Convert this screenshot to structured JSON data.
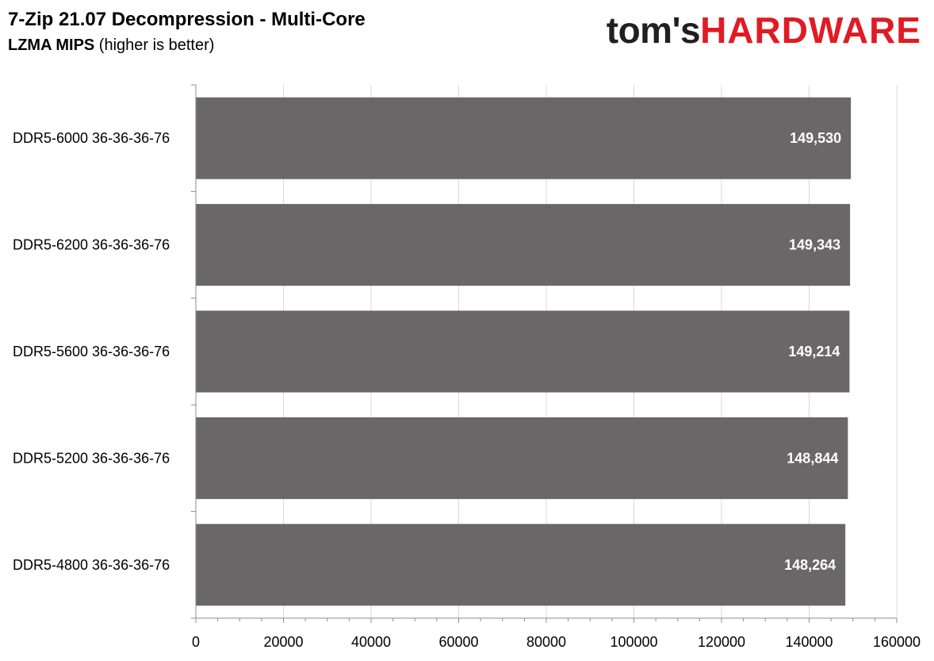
{
  "header": {
    "title": "7-Zip 21.07 Decompression - Multi-Core",
    "subtitle_bold": "LZMA MIPS",
    "subtitle_rest": " (higher is better)"
  },
  "logo": {
    "part1": "tom's",
    "part2": "HARDWARE"
  },
  "colors": {
    "bar": "#696767",
    "grid": "#d9d9d9",
    "axis": "#8c8c8c",
    "logo_red": "#e01b24"
  },
  "chart_data": {
    "type": "bar",
    "orientation": "horizontal",
    "title": "7-Zip 21.07 Decompression - Multi-Core",
    "subtitle": "LZMA MIPS (higher is better)",
    "categories": [
      "DDR5-6000 36-36-36-76",
      "DDR5-6200 36-36-36-76",
      "DDR5-5600 36-36-36-76",
      "DDR5-5200 36-36-36-76",
      "DDR5-4800 36-36-36-76"
    ],
    "values": [
      149530,
      149343,
      149214,
      148844,
      148264
    ],
    "data_labels": [
      "149,530",
      "149,343",
      "149,214",
      "148,844",
      "148,264"
    ],
    "xlim": [
      0,
      160000
    ],
    "xticks": [
      0,
      20000,
      40000,
      60000,
      80000,
      100000,
      120000,
      140000,
      160000
    ],
    "xtick_labels": [
      "0",
      "20000",
      "40000",
      "60000",
      "80000",
      "100000",
      "120000",
      "140000",
      "160000"
    ],
    "grid": true,
    "legend": "none"
  }
}
